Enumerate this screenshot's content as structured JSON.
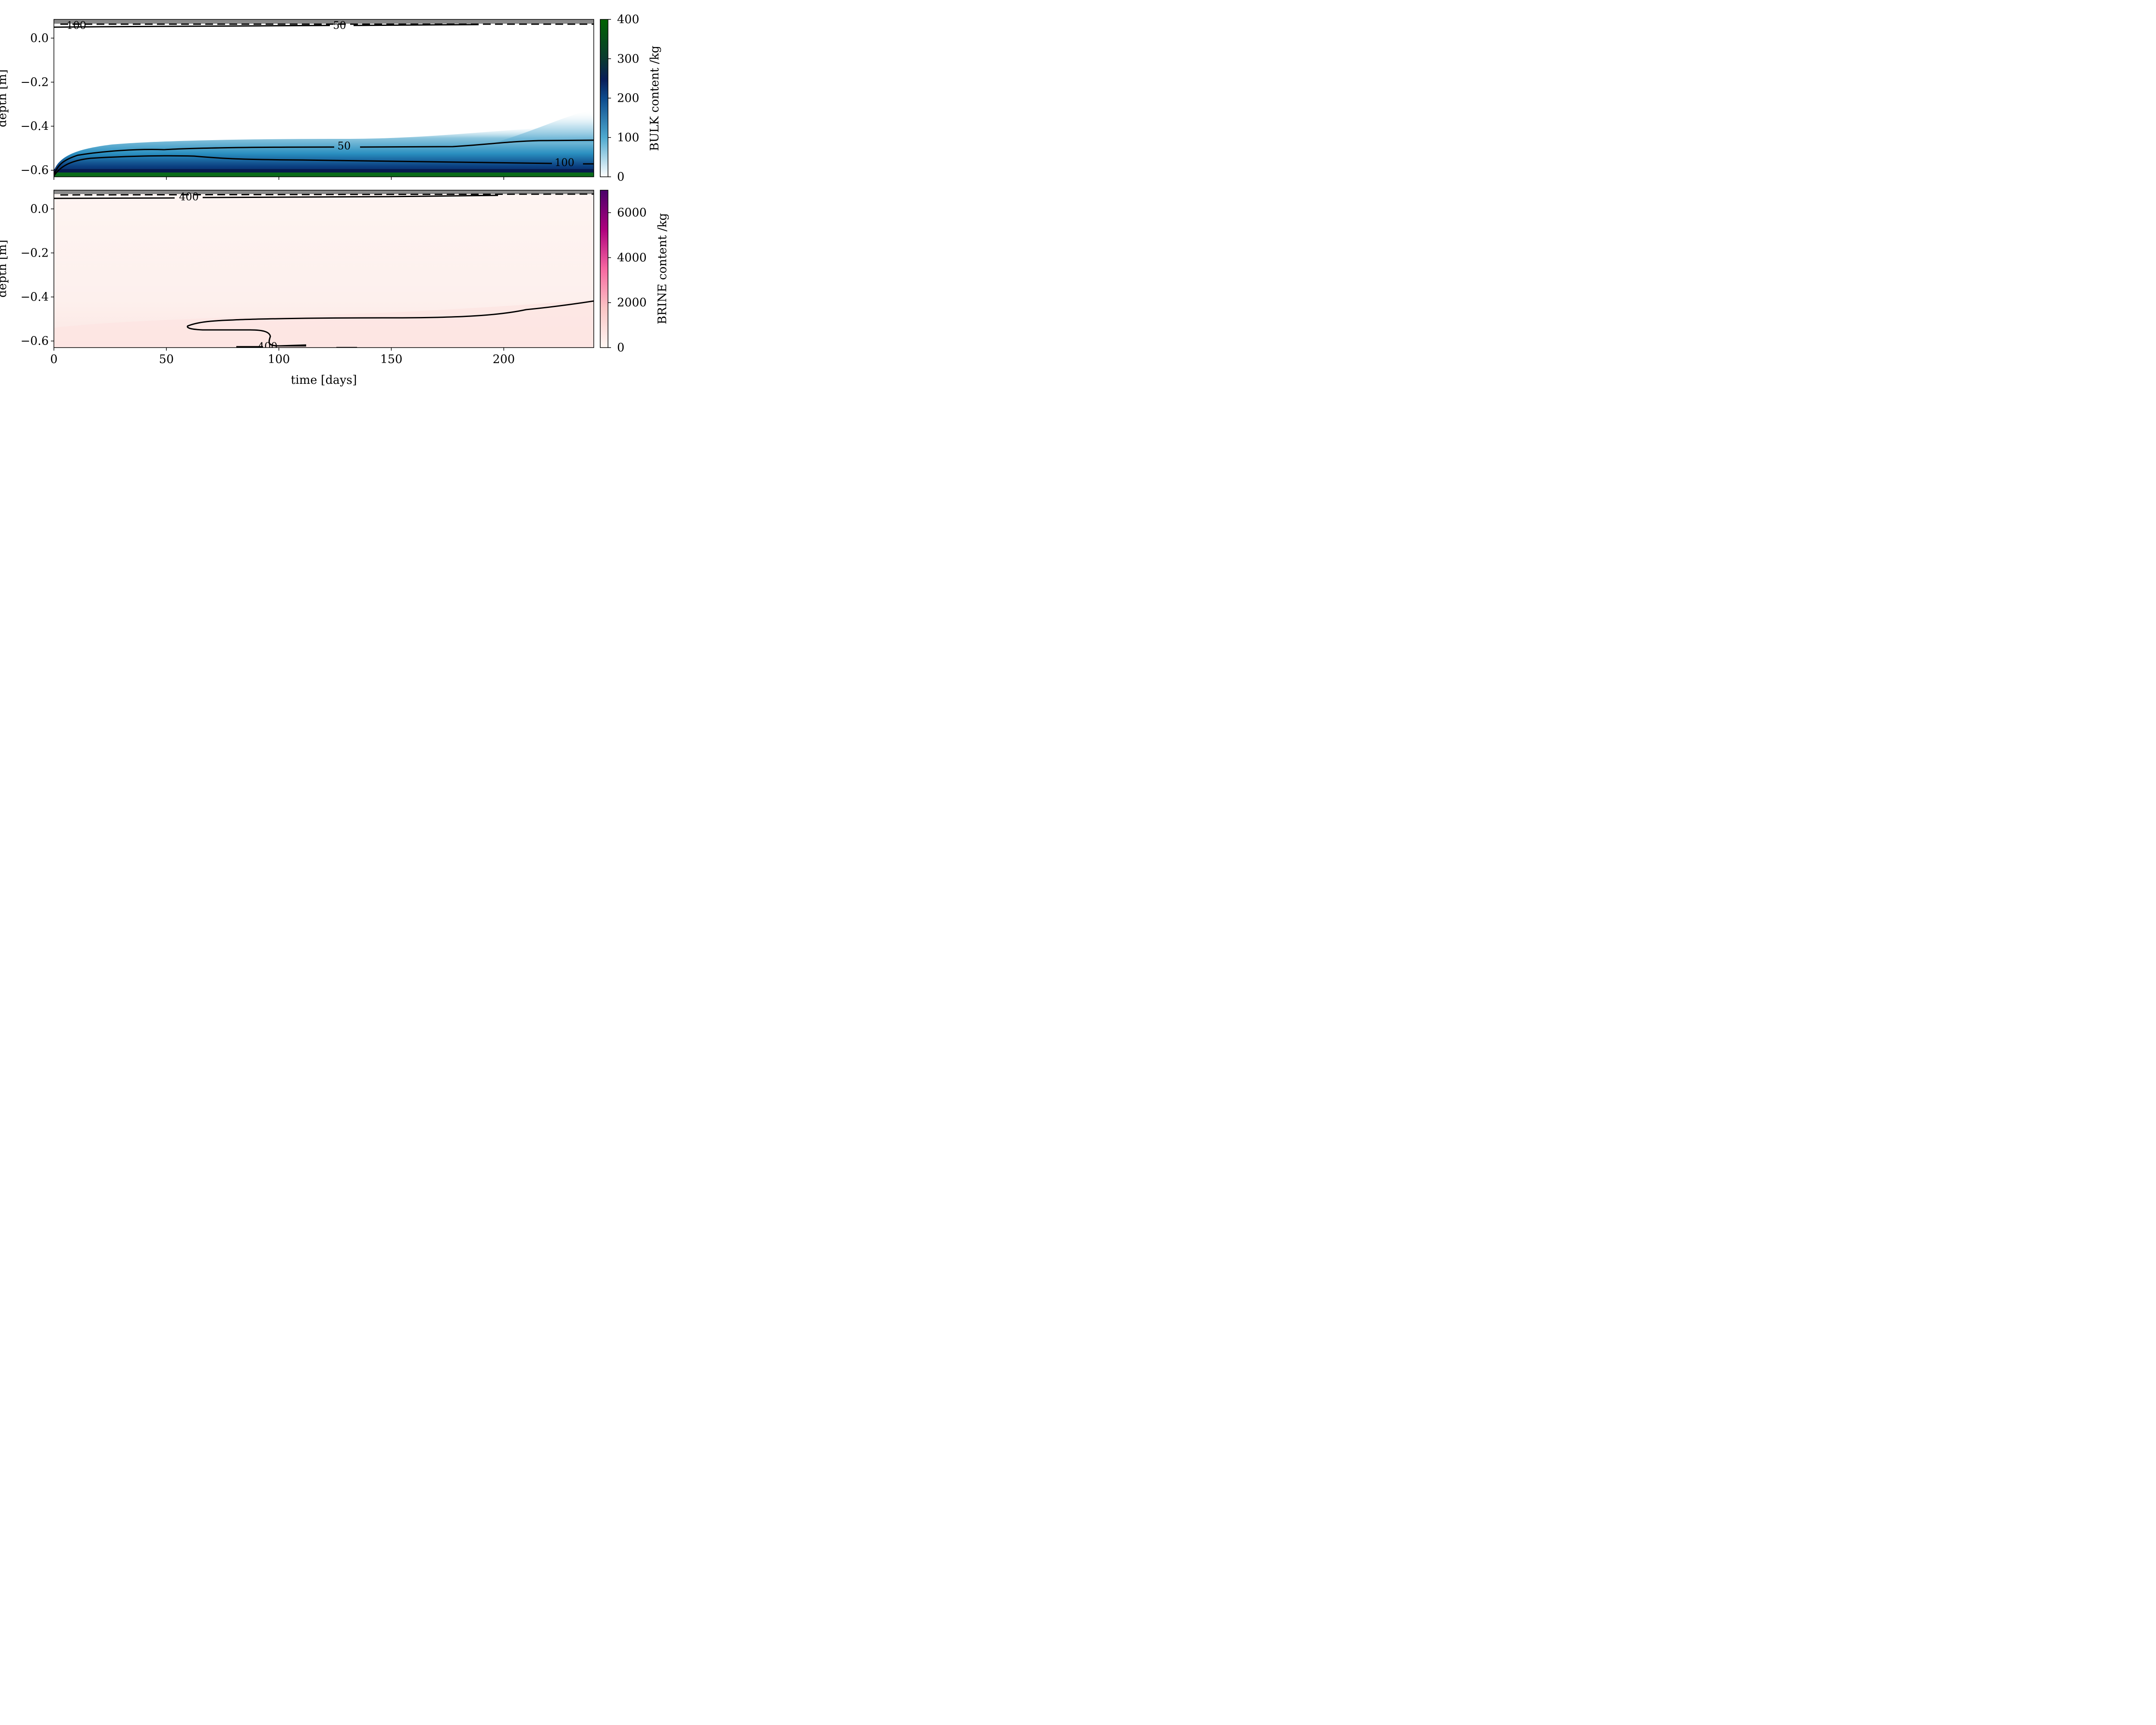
{
  "chart_data": [
    {
      "type": "heatmap",
      "ylabel": "depth [m]",
      "colorbar_label": "BULK content /kg",
      "colormap": [
        "#ffffff",
        "#1a8bbf",
        "#081d58",
        "#0b5d0b"
      ],
      "xlim": [
        0,
        240
      ],
      "ylim": [
        -0.63,
        0.085
      ],
      "xticks": [
        0,
        50,
        100,
        150,
        200
      ],
      "yticks": [
        -0.6,
        -0.4,
        -0.2,
        0.0
      ],
      "ytick_labels": [
        "−0.6",
        "−0.4",
        "−0.2",
        "0.0"
      ],
      "colorbar_range": [
        0,
        400
      ],
      "colorbar_ticks": [
        0,
        100,
        200,
        300,
        400
      ],
      "surface_band_color": "#8a8a8a",
      "contour_labels": [
        {
          "text": "100",
          "x": 10,
          "y": 0.058
        },
        {
          "text": "50",
          "x": 127,
          "y": 0.058
        },
        {
          "text": "50",
          "x": 129,
          "y": -0.49
        },
        {
          "text": "100",
          "x": 227,
          "y": -0.565
        }
      ]
    },
    {
      "type": "heatmap",
      "xlabel": "time [days]",
      "ylabel": "depth [m]",
      "colorbar_label": "BRINE content /kg",
      "colormap": [
        "#fff7f3",
        "#fbc5c5",
        "#f768a1",
        "#7a0177",
        "#49006a"
      ],
      "xlim": [
        0,
        240
      ],
      "ylim": [
        -0.63,
        0.085
      ],
      "xticks": [
        0,
        50,
        100,
        150,
        200
      ],
      "yticks": [
        -0.6,
        -0.4,
        -0.2,
        0.0
      ],
      "ytick_labels": [
        "−0.6",
        "−0.4",
        "−0.2",
        "0.0"
      ],
      "colorbar_range": [
        0,
        7000
      ],
      "colorbar_ticks": [
        0,
        2000,
        4000,
        6000
      ],
      "surface_band_color": "#8a8a8a",
      "contour_labels": [
        {
          "text": "400",
          "x": 60,
          "y": 0.055
        },
        {
          "text": "400",
          "x": 95,
          "y": -0.625
        }
      ]
    }
  ]
}
